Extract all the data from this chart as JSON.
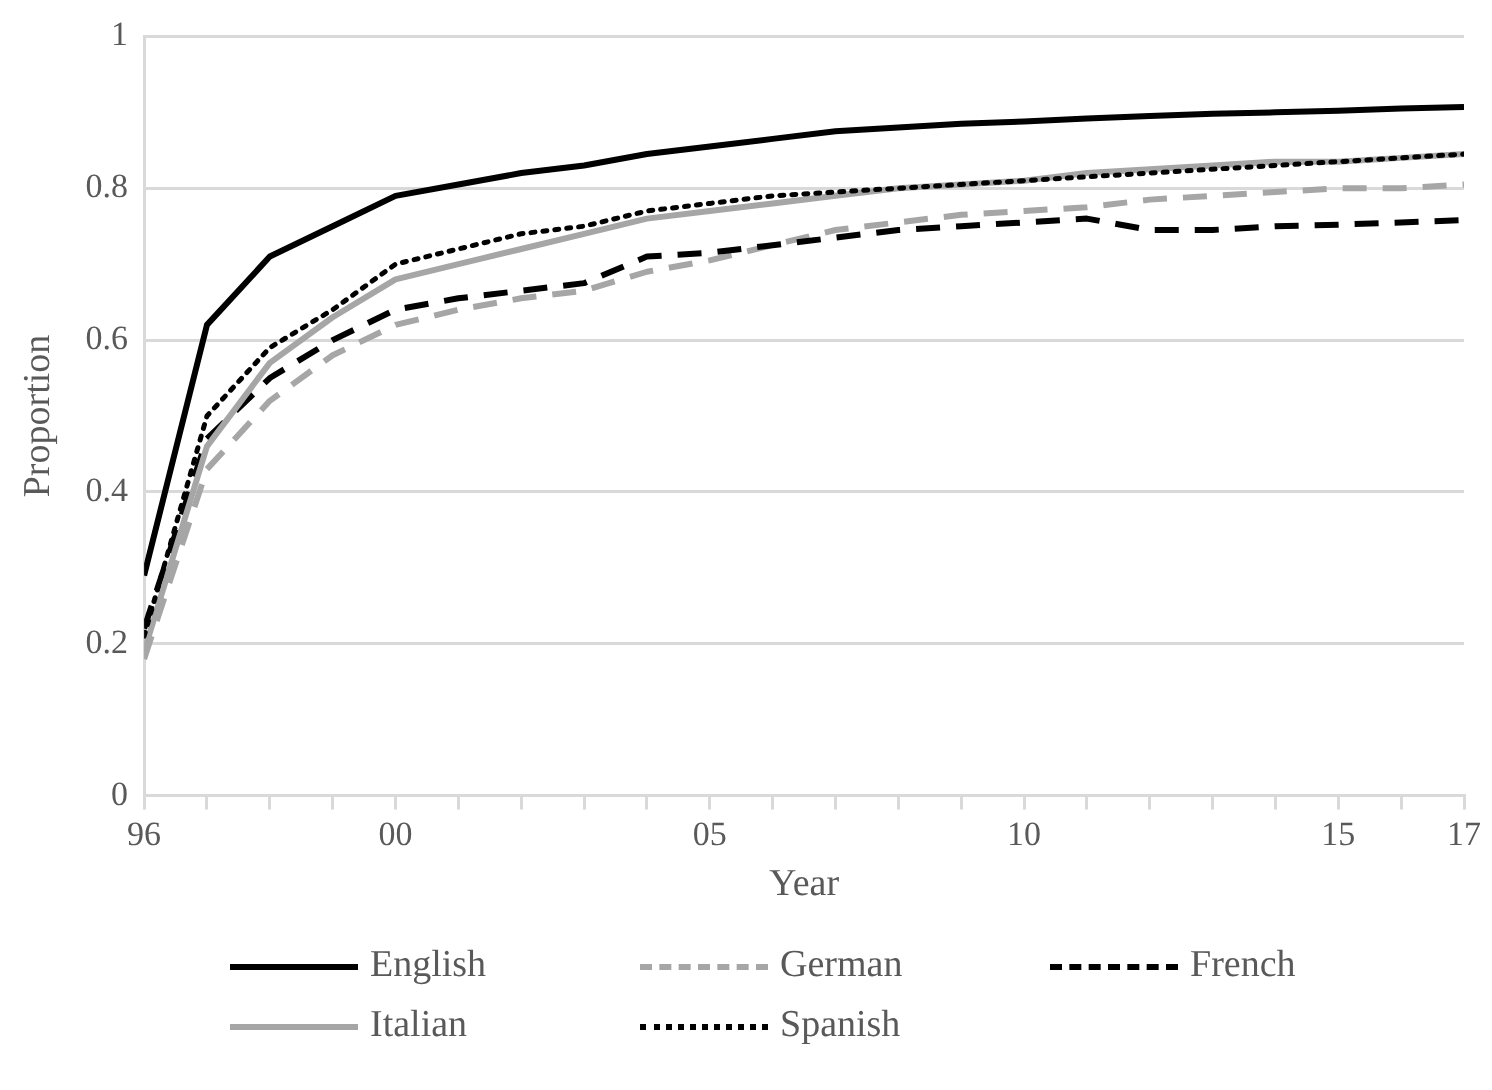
{
  "chart_data": {
    "type": "line",
    "xlabel": "Year",
    "ylabel": "Proportion",
    "x": [
      1996,
      1997,
      1998,
      1999,
      2000,
      2001,
      2002,
      2003,
      2004,
      2005,
      2006,
      2007,
      2008,
      2009,
      2010,
      2011,
      2012,
      2013,
      2014,
      2015,
      2016,
      2017
    ],
    "series": [
      {
        "name": "English",
        "color": "#000000",
        "line_style": "solid",
        "values": [
          0.29,
          0.62,
          0.71,
          0.75,
          0.79,
          0.805,
          0.82,
          0.83,
          0.845,
          0.855,
          0.865,
          0.875,
          0.88,
          0.885,
          0.888,
          0.892,
          0.895,
          0.898,
          0.9,
          0.902,
          0.905,
          0.907
        ]
      },
      {
        "name": "German",
        "color": "#a6a6a6",
        "line_style": "dashed",
        "values": [
          0.18,
          0.43,
          0.52,
          0.58,
          0.62,
          0.64,
          0.655,
          0.665,
          0.69,
          0.705,
          0.725,
          0.745,
          0.755,
          0.765,
          0.77,
          0.775,
          0.785,
          0.79,
          0.795,
          0.8,
          0.8,
          0.805
        ]
      },
      {
        "name": "French",
        "color": "#000000",
        "line_style": "dashed",
        "values": [
          0.22,
          0.47,
          0.55,
          0.6,
          0.64,
          0.655,
          0.665,
          0.675,
          0.71,
          0.715,
          0.725,
          0.735,
          0.745,
          0.75,
          0.755,
          0.76,
          0.745,
          0.745,
          0.75,
          0.752,
          0.755,
          0.758
        ]
      },
      {
        "name": "Italian",
        "color": "#a6a6a6",
        "line_style": "solid",
        "values": [
          0.19,
          0.46,
          0.57,
          0.63,
          0.68,
          0.7,
          0.72,
          0.74,
          0.76,
          0.77,
          0.78,
          0.79,
          0.8,
          0.805,
          0.81,
          0.82,
          0.825,
          0.83,
          0.835,
          0.835,
          0.84,
          0.845
        ]
      },
      {
        "name": "Spanish",
        "color": "#000000",
        "line_style": "dotted",
        "values": [
          0.21,
          0.5,
          0.59,
          0.64,
          0.7,
          0.72,
          0.74,
          0.75,
          0.77,
          0.78,
          0.79,
          0.795,
          0.8,
          0.805,
          0.81,
          0.815,
          0.82,
          0.825,
          0.83,
          0.835,
          0.84,
          0.845
        ]
      }
    ],
    "xlim": [
      1996,
      2017
    ],
    "xticks": [
      {
        "value": 1996,
        "label": "96"
      },
      {
        "value": 1997,
        "label": null
      },
      {
        "value": 1998,
        "label": null
      },
      {
        "value": 1999,
        "label": null
      },
      {
        "value": 2000,
        "label": "00"
      },
      {
        "value": 2001,
        "label": null
      },
      {
        "value": 2002,
        "label": null
      },
      {
        "value": 2003,
        "label": null
      },
      {
        "value": 2004,
        "label": null
      },
      {
        "value": 2005,
        "label": "05"
      },
      {
        "value": 2006,
        "label": null
      },
      {
        "value": 2007,
        "label": null
      },
      {
        "value": 2008,
        "label": null
      },
      {
        "value": 2009,
        "label": null
      },
      {
        "value": 2010,
        "label": "10"
      },
      {
        "value": 2011,
        "label": null
      },
      {
        "value": 2012,
        "label": null
      },
      {
        "value": 2013,
        "label": null
      },
      {
        "value": 2014,
        "label": null
      },
      {
        "value": 2015,
        "label": "15"
      },
      {
        "value": 2016,
        "label": null
      },
      {
        "value": 2017,
        "label": "17"
      }
    ],
    "ylim": [
      0,
      1
    ],
    "yticks": [
      0,
      0.2,
      0.4,
      0.6,
      0.8,
      1
    ],
    "grid": "y",
    "legend": "bottom",
    "marker": "none"
  }
}
